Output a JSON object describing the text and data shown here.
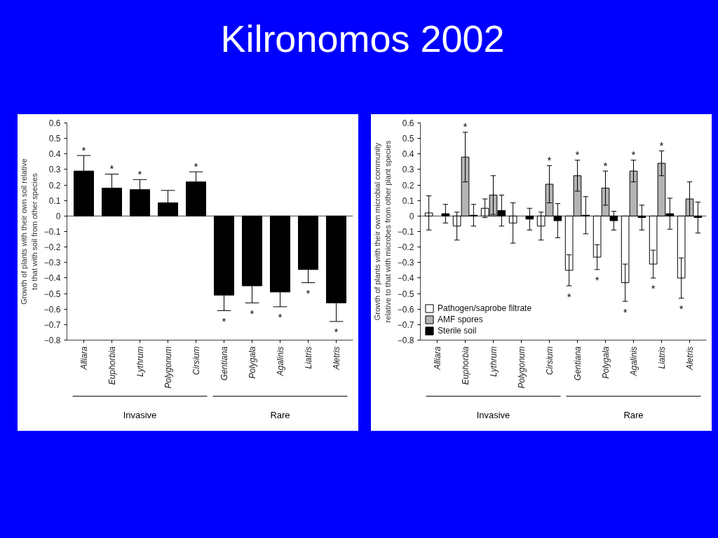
{
  "chart_data": [
    {
      "type": "bar",
      "title": "Kilronomos 2002",
      "ylabel": "Growth of plants with their own soil relative to that with soil from other species",
      "categories": [
        "Alliara",
        "Euphorbia",
        "Lythrum",
        "Polygonum",
        "Cirsium",
        "Gentiana",
        "Polygala",
        "Agalinis",
        "Liatris",
        "Aletris"
      ],
      "values": [
        0.29,
        0.18,
        0.17,
        0.085,
        0.22,
        -0.51,
        -0.45,
        -0.49,
        -0.345,
        -0.56
      ],
      "errors": [
        0.1,
        0.09,
        0.065,
        0.08,
        0.065,
        0.1,
        0.11,
        0.095,
        0.085,
        0.12
      ],
      "value_labels": [
        "*",
        "*",
        "*",
        null,
        "*",
        "*",
        "*",
        "*",
        "*",
        "*"
      ],
      "color": "#000000",
      "ylim": [
        -0.8,
        0.6
      ],
      "yticks": [
        0.6,
        0.5,
        0.4,
        0.3,
        0.2,
        0.1,
        0,
        {
          "value": -0.1,
          "label": "−0.1"
        },
        {
          "value": -0.2,
          "label": "−0.2"
        },
        {
          "value": -0.3,
          "label": "−0.3"
        },
        {
          "value": -0.4,
          "label": "−0.4"
        },
        {
          "value": -0.5,
          "label": "−0.5"
        },
        {
          "value": -0.6,
          "label": "−0.6"
        },
        {
          "value": -0.7,
          "label": "−0.7"
        },
        {
          "value": -0.8,
          "label": "−0.8"
        }
      ],
      "grid": false,
      "ref_lines": [
        {
          "axis": "y",
          "value": 0
        }
      ],
      "annotations": [
        "Invasive",
        "Rare"
      ]
    },
    {
      "type": "bar",
      "ylabel": "Growth of plants with their own microbial community relative to that with microbes from other plant species",
      "categories": [
        "Alliara",
        "Euphorbia",
        "Lythrum",
        "Polygonum",
        "Cirsium",
        "Gentiana",
        "Polygala",
        "Agalinis",
        "Liatris",
        "Aletris"
      ],
      "series": [
        {
          "name": "Pathogen/saprobe filtrate",
          "color": "#ffffff",
          "values": [
            0.02,
            -0.065,
            0.05,
            -0.045,
            -0.065,
            -0.35,
            -0.265,
            -0.43,
            -0.31,
            -0.4
          ],
          "errors": [
            0.11,
            0.09,
            0.06,
            0.13,
            0.09,
            0.1,
            0.08,
            0.12,
            0.09,
            0.13
          ],
          "value_labels": [
            null,
            null,
            null,
            null,
            null,
            "*",
            "*",
            "*",
            "*",
            "*"
          ]
        },
        {
          "name": "AMF spores",
          "color": "#b4b4b4",
          "values": [
            null,
            0.38,
            0.135,
            null,
            0.205,
            0.26,
            0.18,
            0.29,
            0.34,
            0.11
          ],
          "errors": [
            null,
            0.16,
            0.125,
            null,
            0.12,
            0.1,
            0.11,
            0.07,
            0.08,
            0.11
          ],
          "value_labels": [
            null,
            "*",
            null,
            null,
            "*",
            "*",
            "*",
            "*",
            "*",
            null
          ]
        },
        {
          "name": "Sterile soil",
          "color": "#000000",
          "values": [
            0.015,
            0.005,
            0.035,
            -0.02,
            -0.03,
            0.005,
            -0.03,
            -0.01,
            0.015,
            -0.01
          ],
          "errors": [
            0.06,
            0.07,
            0.1,
            0.07,
            0.11,
            0.12,
            0.06,
            0.08,
            0.1,
            0.1
          ]
        }
      ],
      "ylim": [
        -0.8,
        0.6
      ],
      "yticks": [
        0.6,
        0.5,
        0.4,
        0.3,
        0.2,
        0.1,
        0,
        {
          "value": -0.1,
          "label": "−0.1"
        },
        {
          "value": -0.2,
          "label": "−0.2"
        },
        {
          "value": -0.3,
          "label": "−0.3"
        },
        {
          "value": -0.4,
          "label": "−0.4"
        },
        {
          "value": -0.5,
          "label": "−0.5"
        },
        {
          "value": -0.6,
          "label": "−0.6"
        },
        {
          "value": -0.7,
          "label": "−0.7"
        },
        {
          "value": -0.8,
          "label": "−0.8"
        }
      ],
      "grid": false,
      "ref_lines": [
        {
          "axis": "y",
          "value": 0
        }
      ],
      "legend": "bottom left",
      "annotations": [
        "Invasive",
        "Rare"
      ]
    }
  ]
}
